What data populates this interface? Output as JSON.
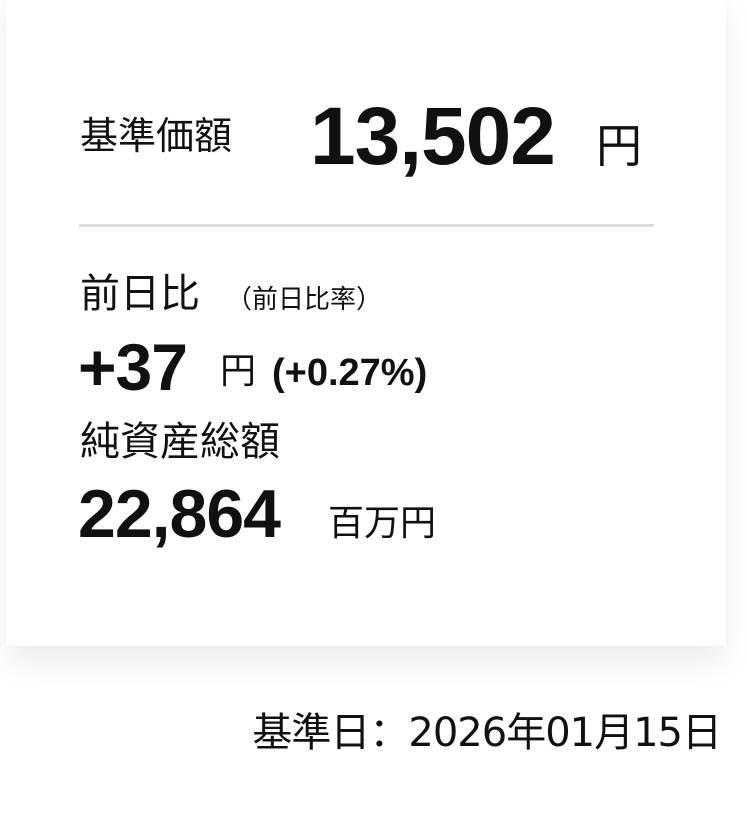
{
  "nav": {
    "label": "基準価額",
    "value": "13,502",
    "unit": "円"
  },
  "change": {
    "label": "前日比",
    "sub_label": "（前日比率）",
    "value": "+37",
    "unit": "円",
    "percent": "(+0.27%)"
  },
  "net_assets": {
    "label": "純資産総額",
    "value": "22,864",
    "unit": "百万円"
  },
  "base_date": "基準日：2026年01月15日"
}
